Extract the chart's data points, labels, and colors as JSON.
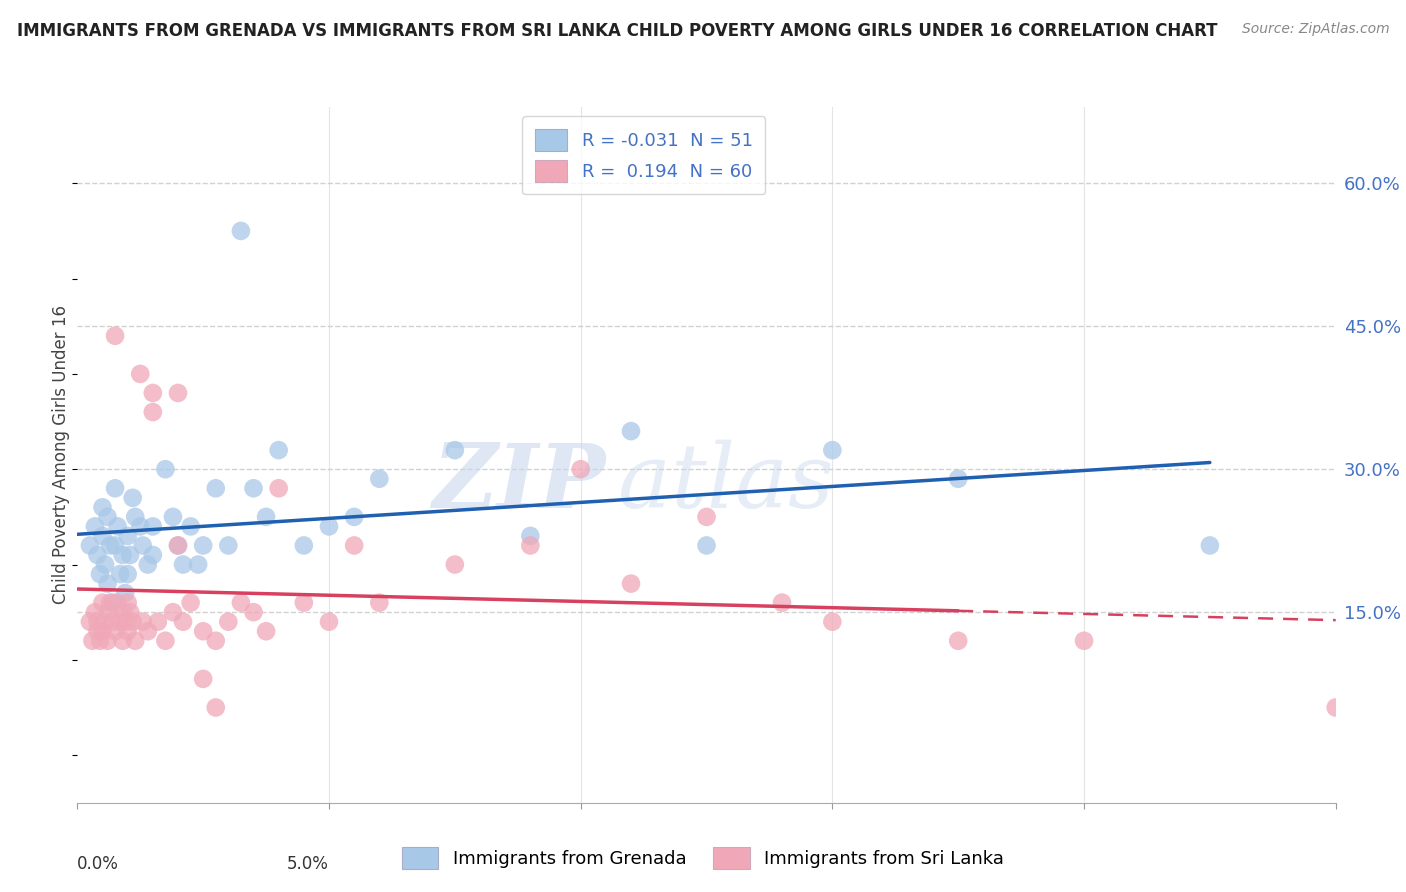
{
  "title": "IMMIGRANTS FROM GRENADA VS IMMIGRANTS FROM SRI LANKA CHILD POVERTY AMONG GIRLS UNDER 16 CORRELATION CHART",
  "source": "Source: ZipAtlas.com",
  "ylabel": "Child Poverty Among Girls Under 16",
  "ytick_vals": [
    0.15,
    0.3,
    0.45,
    0.6
  ],
  "ytick_labels": [
    "15.0%",
    "30.0%",
    "45.0%",
    "60.0%"
  ],
  "xlim": [
    0.0,
    5.0
  ],
  "ylim": [
    -0.05,
    0.68
  ],
  "legend_r_grenada": "-0.031",
  "legend_n_grenada": "51",
  "legend_r_srilanka": "0.194",
  "legend_n_srilanka": "60",
  "color_grenada": "#a8c8e8",
  "color_srilanka": "#f0a8b8",
  "line_color_grenada": "#2060b0",
  "line_color_srilanka": "#d84060",
  "grid_color": "#cccccc",
  "background_color": "#ffffff",
  "watermark_zip": "ZIP",
  "watermark_atlas": "atlas",
  "label_grenada": "Immigrants from Grenada",
  "label_srilanka": "Immigrants from Sri Lanka",
  "grenada_x": [
    0.05,
    0.07,
    0.08,
    0.09,
    0.1,
    0.1,
    0.11,
    0.12,
    0.12,
    0.13,
    0.14,
    0.15,
    0.15,
    0.16,
    0.17,
    0.18,
    0.19,
    0.2,
    0.2,
    0.21,
    0.22,
    0.23,
    0.25,
    0.26,
    0.28,
    0.3,
    0.3,
    0.35,
    0.38,
    0.4,
    0.42,
    0.45,
    0.48,
    0.5,
    0.55,
    0.6,
    0.65,
    0.7,
    0.75,
    0.8,
    0.9,
    1.0,
    1.1,
    1.2,
    1.5,
    1.8,
    2.2,
    2.5,
    3.0,
    3.5,
    4.5
  ],
  "grenada_y": [
    0.22,
    0.24,
    0.21,
    0.19,
    0.26,
    0.23,
    0.2,
    0.18,
    0.25,
    0.22,
    0.16,
    0.28,
    0.22,
    0.24,
    0.19,
    0.21,
    0.17,
    0.23,
    0.19,
    0.21,
    0.27,
    0.25,
    0.24,
    0.22,
    0.2,
    0.24,
    0.21,
    0.3,
    0.25,
    0.22,
    0.2,
    0.24,
    0.2,
    0.22,
    0.28,
    0.22,
    0.55,
    0.28,
    0.25,
    0.32,
    0.22,
    0.24,
    0.25,
    0.29,
    0.32,
    0.23,
    0.34,
    0.22,
    0.32,
    0.29,
    0.22
  ],
  "srilanka_x": [
    0.05,
    0.06,
    0.07,
    0.08,
    0.08,
    0.09,
    0.1,
    0.1,
    0.11,
    0.12,
    0.12,
    0.13,
    0.14,
    0.15,
    0.15,
    0.16,
    0.17,
    0.18,
    0.18,
    0.19,
    0.2,
    0.2,
    0.21,
    0.22,
    0.23,
    0.25,
    0.26,
    0.28,
    0.3,
    0.32,
    0.35,
    0.38,
    0.4,
    0.42,
    0.45,
    0.5,
    0.55,
    0.6,
    0.65,
    0.7,
    0.75,
    0.8,
    0.9,
    1.0,
    1.1,
    1.2,
    1.5,
    1.8,
    2.0,
    2.2,
    2.5,
    2.8,
    3.0,
    3.5,
    4.0,
    0.3,
    0.4,
    0.5,
    0.55,
    5.0
  ],
  "srilanka_y": [
    0.14,
    0.12,
    0.15,
    0.13,
    0.14,
    0.12,
    0.16,
    0.13,
    0.14,
    0.15,
    0.12,
    0.16,
    0.14,
    0.44,
    0.13,
    0.16,
    0.14,
    0.15,
    0.12,
    0.14,
    0.16,
    0.13,
    0.15,
    0.14,
    0.12,
    0.4,
    0.14,
    0.13,
    0.38,
    0.14,
    0.12,
    0.15,
    0.38,
    0.14,
    0.16,
    0.13,
    0.12,
    0.14,
    0.16,
    0.15,
    0.13,
    0.28,
    0.16,
    0.14,
    0.22,
    0.16,
    0.2,
    0.22,
    0.3,
    0.18,
    0.25,
    0.16,
    0.14,
    0.12,
    0.12,
    0.36,
    0.22,
    0.08,
    0.05,
    0.05
  ]
}
